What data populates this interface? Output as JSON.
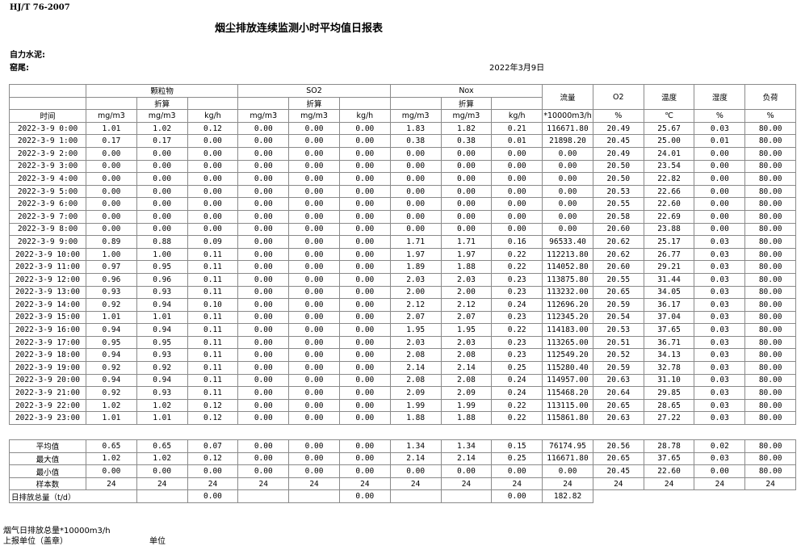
{
  "header": {
    "code": "HJ/T  76-2007",
    "title": "烟尘排放连续监测小时平均值日报表",
    "company": "自力水泥:",
    "kiln": "窑尾:",
    "date": "2022年3月9日"
  },
  "table": {
    "groups": [
      "颗粒物",
      "SO2",
      "Nox"
    ],
    "converted": "折算",
    "others": [
      "流量",
      "O2",
      "温度",
      "湿度",
      "负荷"
    ],
    "units": [
      "时间",
      "mg/m3",
      "mg/m3",
      "kg/h",
      "mg/m3",
      "mg/m3",
      "kg/h",
      "mg/m3",
      "mg/m3",
      "kg/h",
      "*10000m3/h",
      "%",
      "℃",
      "%",
      "%"
    ],
    "rows": [
      [
        "2022-3-9 0:00",
        "1.01",
        "1.02",
        "0.12",
        "0.00",
        "0.00",
        "0.00",
        "1.83",
        "1.82",
        "0.21",
        "116671.80",
        "20.49",
        "25.67",
        "0.03",
        "80.00"
      ],
      [
        "2022-3-9 1:00",
        "0.17",
        "0.17",
        "0.00",
        "0.00",
        "0.00",
        "0.00",
        "0.38",
        "0.38",
        "0.01",
        "21898.20",
        "20.45",
        "25.00",
        "0.01",
        "80.00"
      ],
      [
        "2022-3-9 2:00",
        "0.00",
        "0.00",
        "0.00",
        "0.00",
        "0.00",
        "0.00",
        "0.00",
        "0.00",
        "0.00",
        "0.00",
        "20.49",
        "24.01",
        "0.00",
        "80.00"
      ],
      [
        "2022-3-9 3:00",
        "0.00",
        "0.00",
        "0.00",
        "0.00",
        "0.00",
        "0.00",
        "0.00",
        "0.00",
        "0.00",
        "0.00",
        "20.50",
        "23.54",
        "0.00",
        "80.00"
      ],
      [
        "2022-3-9 4:00",
        "0.00",
        "0.00",
        "0.00",
        "0.00",
        "0.00",
        "0.00",
        "0.00",
        "0.00",
        "0.00",
        "0.00",
        "20.50",
        "22.82",
        "0.00",
        "80.00"
      ],
      [
        "2022-3-9 5:00",
        "0.00",
        "0.00",
        "0.00",
        "0.00",
        "0.00",
        "0.00",
        "0.00",
        "0.00",
        "0.00",
        "0.00",
        "20.53",
        "22.66",
        "0.00",
        "80.00"
      ],
      [
        "2022-3-9 6:00",
        "0.00",
        "0.00",
        "0.00",
        "0.00",
        "0.00",
        "0.00",
        "0.00",
        "0.00",
        "0.00",
        "0.00",
        "20.55",
        "22.60",
        "0.00",
        "80.00"
      ],
      [
        "2022-3-9 7:00",
        "0.00",
        "0.00",
        "0.00",
        "0.00",
        "0.00",
        "0.00",
        "0.00",
        "0.00",
        "0.00",
        "0.00",
        "20.58",
        "22.69",
        "0.00",
        "80.00"
      ],
      [
        "2022-3-9 8:00",
        "0.00",
        "0.00",
        "0.00",
        "0.00",
        "0.00",
        "0.00",
        "0.00",
        "0.00",
        "0.00",
        "0.00",
        "20.60",
        "23.88",
        "0.00",
        "80.00"
      ],
      [
        "2022-3-9 9:00",
        "0.89",
        "0.88",
        "0.09",
        "0.00",
        "0.00",
        "0.00",
        "1.71",
        "1.71",
        "0.16",
        "96533.40",
        "20.62",
        "25.17",
        "0.03",
        "80.00"
      ],
      [
        "2022-3-9 10:00",
        "1.00",
        "1.00",
        "0.11",
        "0.00",
        "0.00",
        "0.00",
        "1.97",
        "1.97",
        "0.22",
        "112213.80",
        "20.62",
        "26.77",
        "0.03",
        "80.00"
      ],
      [
        "2022-3-9 11:00",
        "0.97",
        "0.95",
        "0.11",
        "0.00",
        "0.00",
        "0.00",
        "1.89",
        "1.88",
        "0.22",
        "114052.80",
        "20.60",
        "29.21",
        "0.03",
        "80.00"
      ],
      [
        "2022-3-9 12:00",
        "0.96",
        "0.96",
        "0.11",
        "0.00",
        "0.00",
        "0.00",
        "2.03",
        "2.03",
        "0.23",
        "113875.80",
        "20.55",
        "31.44",
        "0.03",
        "80.00"
      ],
      [
        "2022-3-9 13:00",
        "0.93",
        "0.93",
        "0.11",
        "0.00",
        "0.00",
        "0.00",
        "2.00",
        "2.00",
        "0.23",
        "113232.00",
        "20.65",
        "34.05",
        "0.03",
        "80.00"
      ],
      [
        "2022-3-9 14:00",
        "0.92",
        "0.94",
        "0.10",
        "0.00",
        "0.00",
        "0.00",
        "2.12",
        "2.12",
        "0.24",
        "112696.20",
        "20.59",
        "36.17",
        "0.03",
        "80.00"
      ],
      [
        "2022-3-9 15:00",
        "1.01",
        "1.01",
        "0.11",
        "0.00",
        "0.00",
        "0.00",
        "2.07",
        "2.07",
        "0.23",
        "112345.20",
        "20.54",
        "37.04",
        "0.03",
        "80.00"
      ],
      [
        "2022-3-9 16:00",
        "0.94",
        "0.94",
        "0.11",
        "0.00",
        "0.00",
        "0.00",
        "1.95",
        "1.95",
        "0.22",
        "114183.00",
        "20.53",
        "37.65",
        "0.03",
        "80.00"
      ],
      [
        "2022-3-9 17:00",
        "0.95",
        "0.95",
        "0.11",
        "0.00",
        "0.00",
        "0.00",
        "2.03",
        "2.03",
        "0.23",
        "113265.00",
        "20.51",
        "36.71",
        "0.03",
        "80.00"
      ],
      [
        "2022-3-9 18:00",
        "0.94",
        "0.93",
        "0.11",
        "0.00",
        "0.00",
        "0.00",
        "2.08",
        "2.08",
        "0.23",
        "112549.20",
        "20.52",
        "34.13",
        "0.03",
        "80.00"
      ],
      [
        "2022-3-9 19:00",
        "0.92",
        "0.92",
        "0.11",
        "0.00",
        "0.00",
        "0.00",
        "2.14",
        "2.14",
        "0.25",
        "115280.40",
        "20.59",
        "32.78",
        "0.03",
        "80.00"
      ],
      [
        "2022-3-9 20:00",
        "0.94",
        "0.94",
        "0.11",
        "0.00",
        "0.00",
        "0.00",
        "2.08",
        "2.08",
        "0.24",
        "114957.00",
        "20.63",
        "31.10",
        "0.03",
        "80.00"
      ],
      [
        "2022-3-9 21:00",
        "0.92",
        "0.93",
        "0.11",
        "0.00",
        "0.00",
        "0.00",
        "2.09",
        "2.09",
        "0.24",
        "115468.20",
        "20.64",
        "29.85",
        "0.03",
        "80.00"
      ],
      [
        "2022-3-9 22:00",
        "1.02",
        "1.02",
        "0.12",
        "0.00",
        "0.00",
        "0.00",
        "1.99",
        "1.99",
        "0.22",
        "113115.00",
        "20.65",
        "28.65",
        "0.03",
        "80.00"
      ],
      [
        "2022-3-9 23:00",
        "1.01",
        "1.01",
        "0.12",
        "0.00",
        "0.00",
        "0.00",
        "1.88",
        "1.88",
        "0.22",
        "115861.80",
        "20.63",
        "27.22",
        "0.03",
        "80.00"
      ]
    ],
    "summary": [
      [
        "平均值",
        "0.65",
        "0.65",
        "0.07",
        "0.00",
        "0.00",
        "0.00",
        "1.34",
        "1.34",
        "0.15",
        "76174.95",
        "20.56",
        "28.78",
        "0.02",
        "80.00"
      ],
      [
        "最大值",
        "1.02",
        "1.02",
        "0.12",
        "0.00",
        "0.00",
        "0.00",
        "2.14",
        "2.14",
        "0.25",
        "116671.80",
        "20.65",
        "37.65",
        "0.03",
        "80.00"
      ],
      [
        "最小值",
        "0.00",
        "0.00",
        "0.00",
        "0.00",
        "0.00",
        "0.00",
        "0.00",
        "0.00",
        "0.00",
        "0.00",
        "20.45",
        "22.60",
        "0.00",
        "80.00"
      ],
      [
        "样本数",
        "24",
        "24",
        "24",
        "24",
        "24",
        "24",
        "24",
        "24",
        "24",
        "24",
        "24",
        "24",
        "24",
        "24"
      ]
    ],
    "total": [
      "日排放总量（t/d）",
      null,
      null,
      "0.00",
      null,
      null,
      "0.00",
      null,
      null,
      "0.00",
      "182.82",
      null,
      null,
      null,
      null
    ]
  },
  "footer": {
    "flue_total": "烟气日排放总量*10000m3/h",
    "reporter": "上报单位（盖章）",
    "unit": "单位"
  }
}
